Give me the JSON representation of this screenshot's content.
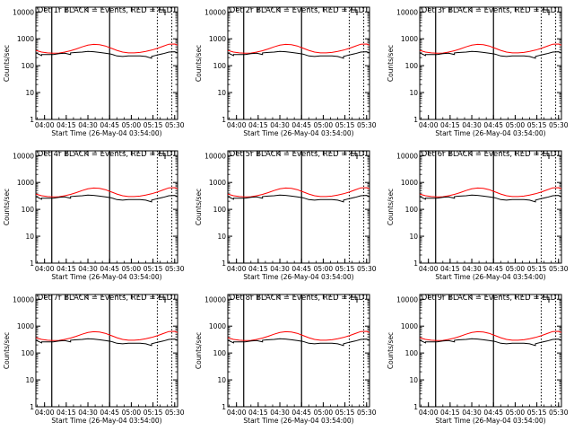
{
  "chart_data": [
    {
      "type": "line",
      "title": "Det 1r BLACK = Events, RED = LLD",
      "xlabel": "Start Time (26-May-04 03:54:00)",
      "ylabel": "Counts/sec"
    },
    {
      "type": "line",
      "title": "Det 2r BLACK = Events, RED = LLD",
      "xlabel": "Start Time (26-May-04 03:54:00)",
      "ylabel": "Counts/sec"
    },
    {
      "type": "line",
      "title": "Det 3r BLACK = Events, RED = LLD",
      "xlabel": "Start Time (26-May-04 03:54:00)",
      "ylabel": "Counts/sec"
    },
    {
      "type": "line",
      "title": "Det 4r BLACK = Events, RED = LLD",
      "xlabel": "Start Time (26-May-04 03:54:00)",
      "ylabel": "Counts/sec"
    },
    {
      "type": "line",
      "title": "Det 5r BLACK = Events, RED = LLD",
      "xlabel": "Start Time (26-May-04 03:54:00)",
      "ylabel": "Counts/sec"
    },
    {
      "type": "line",
      "title": "Det 6r BLACK = Events, RED = LLD",
      "xlabel": "Start Time (26-May-04 03:54:00)",
      "ylabel": "Counts/sec"
    },
    {
      "type": "line",
      "title": "Det 7r BLACK = Events, RED = LLD",
      "xlabel": "Start Time (26-May-04 03:54:00)",
      "ylabel": "Counts/sec"
    },
    {
      "type": "line",
      "title": "Det 8r BLACK = Events, RED = LLD",
      "xlabel": "Start Time (26-May-04 03:54:00)",
      "ylabel": "Counts/sec"
    },
    {
      "type": "line",
      "title": "Det 9r BLACK = Events, RED = LLD",
      "xlabel": "Start Time (26-May-04 03:54:00)",
      "ylabel": "Counts/sec"
    }
  ],
  "shared": {
    "xlim_minutes": [
      0,
      98
    ],
    "ylim": [
      1,
      15000
    ],
    "yscale": "log",
    "x_ticks": [
      {
        "t": 6,
        "label": "04:00"
      },
      {
        "t": 21,
        "label": "04:15"
      },
      {
        "t": 36,
        "label": "04:30"
      },
      {
        "t": 51,
        "label": "04:45"
      },
      {
        "t": 66,
        "label": "05:00"
      },
      {
        "t": 81,
        "label": "05:15"
      },
      {
        "t": 96,
        "label": "05:30"
      }
    ],
    "y_ticks": [
      {
        "v": 1,
        "label": "1"
      },
      {
        "v": 10,
        "label": "10"
      },
      {
        "v": 100,
        "label": "100"
      },
      {
        "v": 1000,
        "label": "1000"
      },
      {
        "v": 10000,
        "label": "10000"
      }
    ],
    "solid_vlines_minutes": [
      11,
      51
    ],
    "dotted_vlines_minutes": [
      84,
      94
    ],
    "colors": {
      "events": "#000000",
      "lld": "#ff0000",
      "axes": "#000000"
    },
    "series": {
      "events": {
        "x": [
          0,
          4,
          4,
          8,
          12,
          16,
          20,
          24,
          24,
          28,
          32,
          36,
          40,
          44,
          48,
          52,
          56,
          60,
          64,
          64,
          68,
          72,
          76,
          80,
          80,
          84,
          88,
          92,
          96,
          98
        ],
        "y": [
          300,
          240,
          260,
          260,
          260,
          280,
          290,
          260,
          300,
          310,
          320,
          340,
          330,
          310,
          290,
          270,
          230,
          220,
          230,
          230,
          230,
          230,
          220,
          190,
          220,
          250,
          280,
          320,
          330,
          300
        ]
      },
      "lld": {
        "x": [
          0,
          4,
          8,
          12,
          16,
          20,
          24,
          28,
          32,
          36,
          40,
          44,
          48,
          52,
          56,
          60,
          64,
          68,
          72,
          76,
          80,
          84,
          88,
          92,
          96,
          98
        ],
        "y": [
          370,
          320,
          300,
          290,
          295,
          320,
          360,
          420,
          500,
          580,
          620,
          600,
          540,
          450,
          370,
          320,
          300,
          300,
          310,
          340,
          380,
          440,
          530,
          630,
          640,
          580
        ]
      }
    }
  }
}
